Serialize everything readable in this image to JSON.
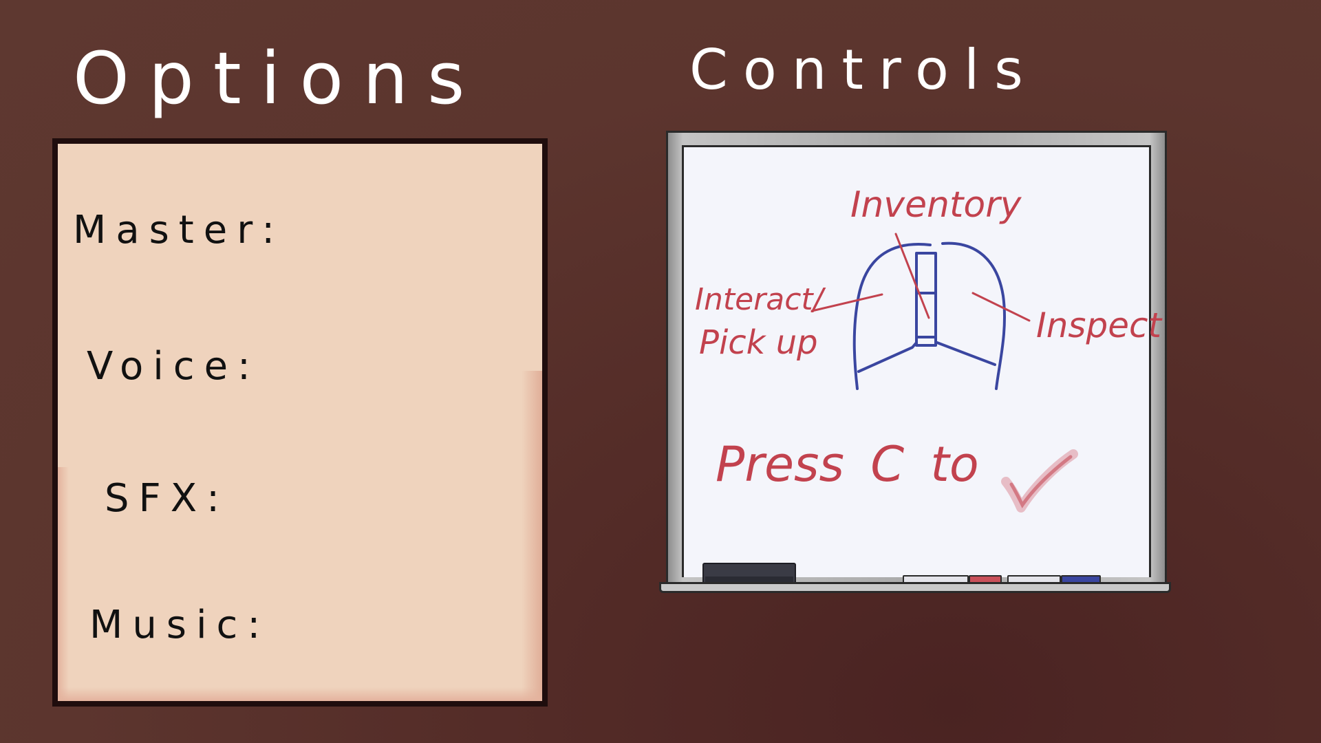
{
  "options": {
    "title": "Options",
    "labels": {
      "master": "Master:",
      "voice": "Voice:",
      "sfx": "SFX:",
      "music": "Music:"
    }
  },
  "controls": {
    "title": "Controls",
    "whiteboard": {
      "inventory": "Inventory",
      "interact": "Interact/",
      "pickup": "Pick up",
      "inspect": "Inspect",
      "press_hint": "Press C to",
      "check_icon": "check-icon"
    }
  },
  "colors": {
    "background": "#5c352e",
    "paper": "#efd3bd",
    "whiteboard": "#f4f5fb",
    "marker_red": "#c2424e",
    "marker_blue": "#3a46a0"
  }
}
